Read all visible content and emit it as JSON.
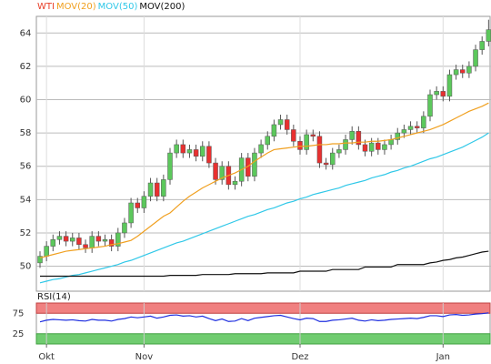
{
  "chart_data": {
    "type": "candlestick",
    "ylim": [
      48.5,
      65
    ],
    "yticks": [
      50,
      52,
      54,
      56,
      58,
      60,
      62,
      64
    ],
    "grid": true,
    "xticks": [
      {
        "value": 1,
        "label": "Okt"
      },
      {
        "value": 16,
        "label": "Nov"
      },
      {
        "value": 40,
        "label": "Dez"
      },
      {
        "value": 62,
        "label": "Jan"
      }
    ],
    "series": [
      {
        "name": "WTI",
        "color": "#e8402a",
        "up_color": "#5cc85c",
        "down_color": "#e83030",
        "open": [
          50.2,
          50.6,
          51.2,
          51.6,
          51.8,
          51.5,
          51.7,
          51.3,
          51.1,
          51.8,
          51.5,
          51.6,
          51.2,
          52.0,
          52.6,
          53.8,
          53.5,
          54.2,
          55.0,
          54.2,
          55.2,
          56.8,
          57.3,
          56.8,
          57.0,
          56.6,
          57.2,
          56.2,
          55.2,
          56.0,
          54.9,
          55.1,
          56.5,
          55.4,
          56.8,
          57.3,
          57.8,
          58.5,
          58.8,
          58.2,
          57.5,
          57.0,
          57.9,
          57.8,
          56.2,
          56.1,
          56.8,
          57.0,
          57.6,
          58.1,
          57.3,
          56.9,
          57.4,
          57.0,
          57.3,
          57.6,
          58.0,
          58.2,
          58.4,
          58.3,
          59.0,
          60.3,
          60.5,
          60.2,
          61.5,
          61.8,
          61.6,
          62.0,
          63.0,
          63.5
        ],
        "high": [
          50.9,
          51.5,
          51.9,
          52.1,
          52.1,
          52.0,
          52.0,
          51.6,
          52.1,
          52.1,
          51.9,
          51.9,
          52.3,
          52.9,
          54.1,
          54.1,
          54.5,
          55.3,
          55.3,
          55.5,
          57.1,
          57.6,
          57.6,
          57.3,
          57.3,
          57.5,
          57.5,
          56.5,
          56.3,
          56.3,
          55.4,
          56.8,
          56.8,
          57.1,
          57.6,
          58.1,
          58.8,
          59.1,
          59.1,
          58.5,
          57.8,
          58.2,
          58.2,
          58.1,
          56.5,
          57.1,
          57.3,
          57.9,
          58.4,
          58.4,
          57.6,
          57.7,
          57.7,
          57.6,
          57.9,
          58.3,
          58.5,
          58.7,
          58.7,
          59.3,
          60.6,
          60.8,
          60.8,
          61.8,
          62.1,
          62.1,
          62.3,
          63.3,
          63.8,
          64.8
        ],
        "low": [
          49.9,
          50.3,
          50.9,
          51.3,
          51.2,
          51.2,
          51.0,
          50.8,
          50.8,
          51.2,
          51.2,
          50.9,
          50.9,
          51.7,
          52.3,
          53.2,
          53.2,
          53.9,
          53.9,
          53.9,
          54.9,
          56.5,
          56.5,
          56.5,
          56.3,
          56.3,
          55.9,
          54.9,
          54.9,
          54.6,
          54.6,
          54.8,
          55.1,
          55.1,
          56.5,
          57.0,
          57.5,
          58.2,
          57.9,
          57.2,
          56.7,
          56.7,
          57.5,
          55.9,
          55.8,
          55.8,
          56.5,
          56.7,
          57.3,
          57.0,
          56.6,
          56.6,
          56.7,
          56.7,
          57.0,
          57.3,
          57.7,
          57.9,
          58.0,
          58.0,
          58.7,
          60.0,
          59.9,
          59.9,
          61.2,
          61.3,
          61.3,
          61.7,
          62.7,
          63.2
        ],
        "close": [
          50.6,
          51.2,
          51.6,
          51.8,
          51.5,
          51.7,
          51.3,
          51.1,
          51.8,
          51.5,
          51.6,
          51.2,
          52.0,
          52.6,
          53.8,
          53.5,
          54.2,
          55.0,
          54.2,
          55.2,
          56.8,
          57.3,
          56.8,
          57.0,
          56.6,
          57.2,
          56.2,
          55.2,
          56.0,
          54.9,
          55.1,
          56.5,
          55.4,
          56.8,
          57.3,
          57.8,
          58.5,
          58.8,
          58.2,
          57.5,
          57.0,
          57.9,
          57.8,
          56.2,
          56.1,
          56.8,
          57.0,
          57.6,
          58.1,
          57.3,
          56.9,
          57.4,
          57.0,
          57.3,
          57.6,
          58.0,
          58.2,
          58.4,
          58.3,
          59.0,
          60.3,
          60.5,
          60.2,
          61.5,
          61.8,
          61.6,
          62.0,
          63.0,
          63.5,
          64.2
        ]
      },
      {
        "name": "MOV(20)",
        "color": "#f0a020",
        "values": [
          50.5,
          50.6,
          50.7,
          50.8,
          50.9,
          50.95,
          51.0,
          51.05,
          51.1,
          51.15,
          51.2,
          51.3,
          51.35,
          51.45,
          51.55,
          51.8,
          52.1,
          52.4,
          52.7,
          53.0,
          53.2,
          53.55,
          53.9,
          54.2,
          54.45,
          54.7,
          54.9,
          55.1,
          55.3,
          55.45,
          55.6,
          55.8,
          56.0,
          56.3,
          56.55,
          56.8,
          57.0,
          57.05,
          57.1,
          57.15,
          57.2,
          57.2,
          57.25,
          57.3,
          57.3,
          57.35,
          57.35,
          57.4,
          57.4,
          57.45,
          57.45,
          57.5,
          57.5,
          57.55,
          57.6,
          57.7,
          57.8,
          57.9,
          58.0,
          58.1,
          58.2,
          58.35,
          58.5,
          58.7,
          58.9,
          59.1,
          59.3,
          59.45,
          59.6,
          59.8
        ]
      },
      {
        "name": "MOV(50)",
        "color": "#30c8e8",
        "values": [
          49.0,
          49.1,
          49.2,
          49.25,
          49.35,
          49.45,
          49.5,
          49.6,
          49.7,
          49.8,
          49.9,
          50.0,
          50.1,
          50.25,
          50.35,
          50.5,
          50.65,
          50.8,
          50.95,
          51.1,
          51.25,
          51.4,
          51.5,
          51.65,
          51.8,
          51.95,
          52.1,
          52.25,
          52.4,
          52.55,
          52.7,
          52.85,
          53.0,
          53.1,
          53.25,
          53.4,
          53.5,
          53.65,
          53.8,
          53.9,
          54.05,
          54.15,
          54.3,
          54.4,
          54.5,
          54.6,
          54.7,
          54.85,
          54.95,
          55.05,
          55.15,
          55.3,
          55.4,
          55.5,
          55.65,
          55.75,
          55.9,
          56.0,
          56.15,
          56.3,
          56.45,
          56.55,
          56.7,
          56.85,
          57.0,
          57.15,
          57.35,
          57.55,
          57.75,
          58.0
        ]
      },
      {
        "name": "MOV(200)",
        "color": "#111111",
        "values": [
          49.4,
          49.4,
          49.4,
          49.4,
          49.4,
          49.4,
          49.4,
          49.4,
          49.4,
          49.4,
          49.4,
          49.4,
          49.4,
          49.4,
          49.4,
          49.4,
          49.4,
          49.4,
          49.4,
          49.4,
          49.45,
          49.45,
          49.45,
          49.45,
          49.45,
          49.5,
          49.5,
          49.5,
          49.5,
          49.5,
          49.55,
          49.55,
          49.55,
          49.55,
          49.55,
          49.6,
          49.6,
          49.6,
          49.6,
          49.6,
          49.7,
          49.7,
          49.7,
          49.7,
          49.7,
          49.8,
          49.8,
          49.8,
          49.8,
          49.8,
          49.95,
          49.95,
          49.95,
          49.95,
          49.95,
          50.1,
          50.1,
          50.1,
          50.1,
          50.1,
          50.2,
          50.25,
          50.35,
          50.4,
          50.5,
          50.55,
          50.65,
          50.75,
          50.85,
          50.9
        ]
      }
    ],
    "rsi": {
      "name": "RSI(14)",
      "color": "#2030e0",
      "ylim": [
        0,
        100
      ],
      "yticks": [
        25,
        75
      ],
      "overbought_color": "#f08080",
      "oversold_color": "#70cc70",
      "values": [
        54,
        58,
        60,
        59,
        58,
        59,
        57,
        56,
        60,
        58,
        58,
        56,
        60,
        62,
        66,
        64,
        66,
        68,
        63,
        66,
        70,
        71,
        68,
        69,
        66,
        68,
        62,
        57,
        61,
        55,
        56,
        62,
        57,
        63,
        65,
        67,
        69,
        70,
        66,
        62,
        59,
        63,
        62,
        55,
        55,
        58,
        59,
        61,
        63,
        58,
        56,
        59,
        57,
        58,
        60,
        61,
        62,
        63,
        62,
        65,
        69,
        69,
        67,
        71,
        72,
        70,
        71,
        73,
        74,
        76
      ]
    }
  }
}
